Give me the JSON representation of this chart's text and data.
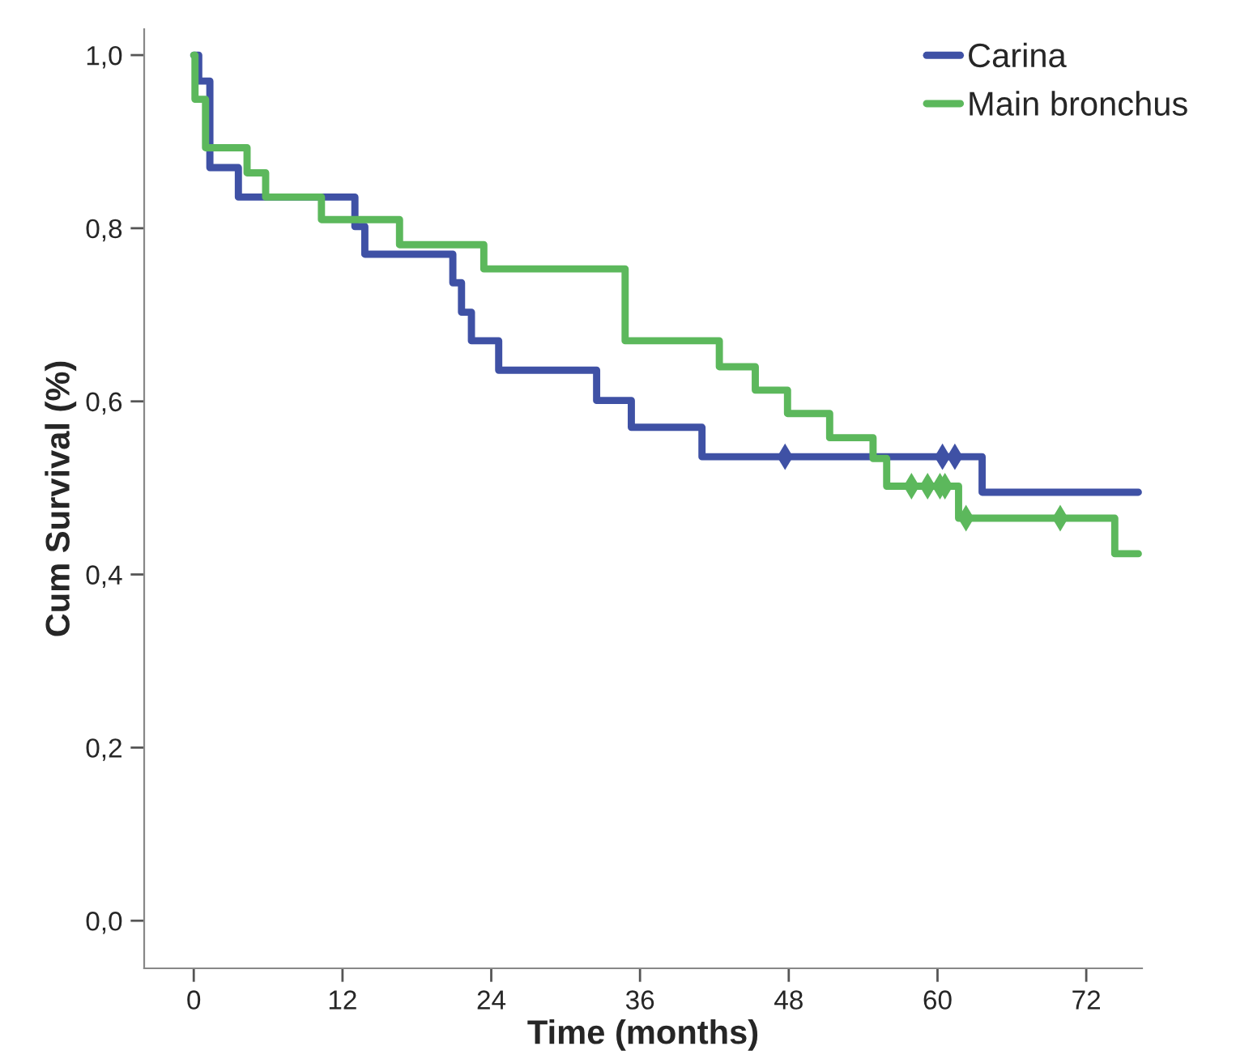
{
  "chart_data": {
    "type": "step",
    "xlabel": "Time (months)",
    "ylabel": "Cum Survival (%)",
    "xlim": [
      -4,
      76.5
    ],
    "ylim": [
      -0.055,
      1.03
    ],
    "xticks": [
      0,
      12,
      24,
      36,
      48,
      60,
      72
    ],
    "yticks": [
      {
        "value": 0.0,
        "label": "0,0"
      },
      {
        "value": 0.2,
        "label": "0,2"
      },
      {
        "value": 0.4,
        "label": "0,4"
      },
      {
        "value": 0.6,
        "label": "0,6"
      },
      {
        "value": 0.8,
        "label": "0,8"
      },
      {
        "value": 1.0,
        "label": "1,0"
      }
    ],
    "grid": false,
    "legend": "top right",
    "series": [
      {
        "name": "Carina",
        "color": "#3f51a5",
        "x": [
          0,
          0.4,
          1.3,
          3.6,
          13.0,
          13.8,
          20.9,
          21.6,
          22.4,
          24.6,
          32.5,
          35.3,
          41.0,
          63.6,
          76.2
        ],
        "values": [
          1.0,
          0.97,
          0.87,
          0.836,
          0.802,
          0.77,
          0.737,
          0.703,
          0.67,
          0.636,
          0.601,
          0.57,
          0.536,
          0.495,
          0.495
        ]
      },
      {
        "name": "Main bronchus",
        "color": "#5cb85c",
        "x": [
          0,
          0.1,
          0.95,
          4.3,
          5.8,
          10.3,
          16.6,
          23.4,
          34.8,
          42.4,
          45.3,
          47.9,
          51.3,
          54.8,
          55.9,
          61.7,
          74.3,
          76.2
        ],
        "values": [
          1.0,
          0.949,
          0.893,
          0.864,
          0.836,
          0.81,
          0.781,
          0.753,
          0.67,
          0.64,
          0.613,
          0.586,
          0.558,
          0.534,
          0.502,
          0.465,
          0.424,
          0.424
        ]
      },
      {
        "type": "scatter",
        "marker": "diamond",
        "color": "#3f51a5",
        "x": [
          47.7,
          60.4,
          61.4
        ],
        "values": [
          0.536,
          0.536,
          0.536
        ]
      },
      {
        "type": "scatter",
        "marker": "diamond",
        "color": "#5cb85c",
        "x": [
          57.9,
          59.2,
          60.2,
          60.6,
          62.3,
          69.9
        ],
        "values": [
          0.502,
          0.502,
          0.502,
          0.502,
          0.465,
          0.465
        ]
      }
    ]
  }
}
